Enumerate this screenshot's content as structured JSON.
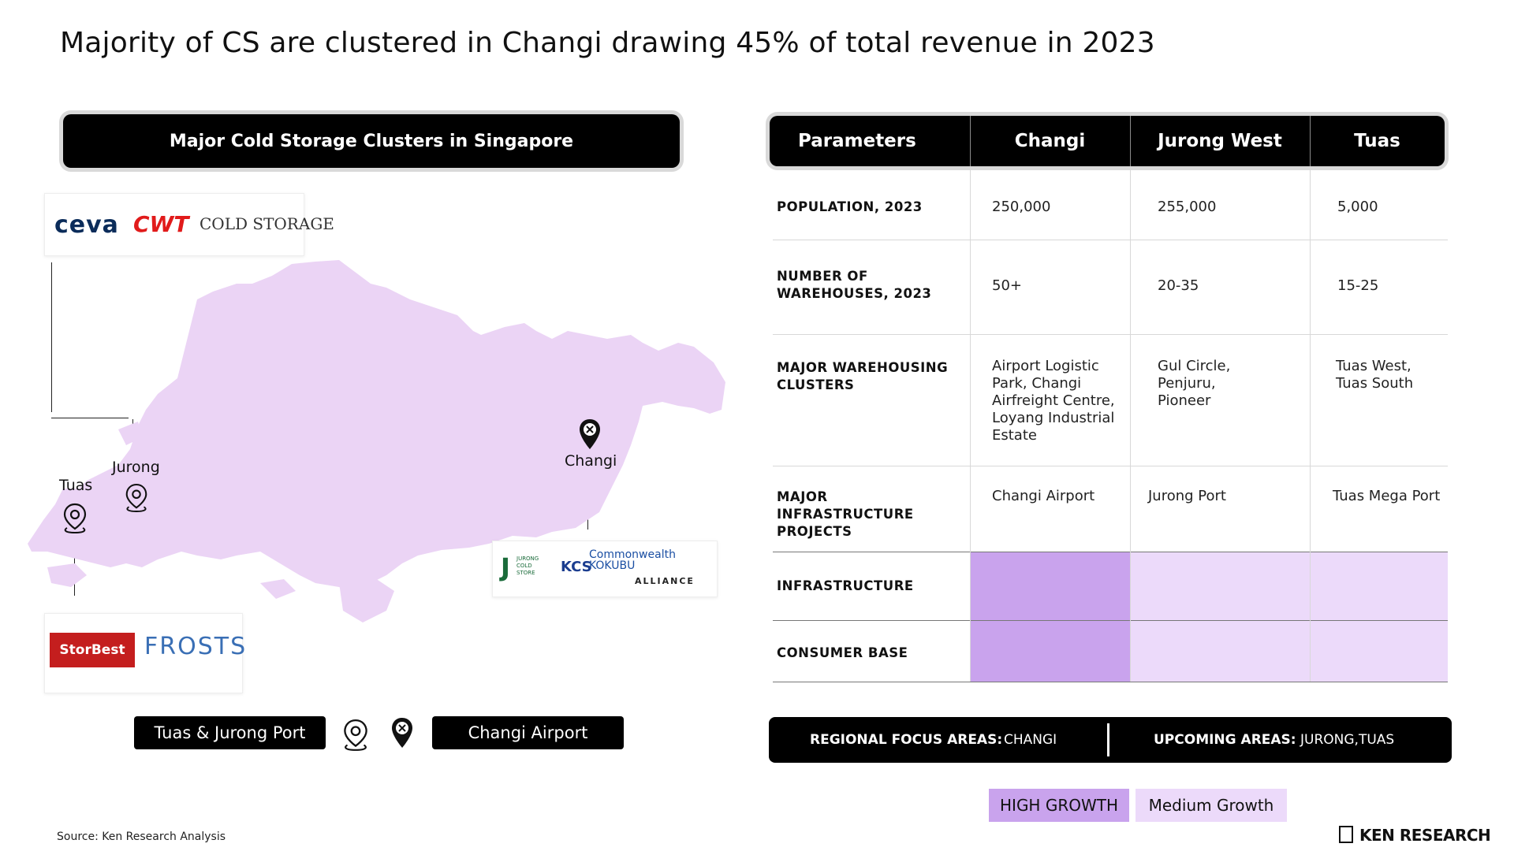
{
  "title": "Majority of CS are clustered in Changi drawing 45% of total revenue in 2023",
  "map_panel": {
    "header": "Major Cold Storage Clusters in Singapore",
    "places": {
      "tuas": "Tuas",
      "jurong": "Jurong",
      "changi": "Changi"
    },
    "logos_top_left": [
      "ceva",
      "CWT",
      "COLD STORAGE"
    ],
    "logos_bottom_left": [
      "StorBest",
      "FROSTS"
    ],
    "logos_right": [
      "JURONG COLD STORE",
      "KCS",
      "Commonwealth KOKUBU",
      "ALLIANCE"
    ],
    "legend": {
      "left_label": "Tuas & Jurong Port",
      "right_label": "Changi Airport",
      "left_icon": "location-outline-pin-icon",
      "right_icon": "location-filled-pin-icon"
    }
  },
  "table": {
    "headers": [
      "Parameters",
      "Changi",
      "Jurong West",
      "Tuas"
    ],
    "rows": [
      {
        "param": "POPULATION, 2023",
        "changi": "250,000",
        "jurong": "255,000",
        "tuas": "5,000"
      },
      {
        "param": "NUMBER OF WAREHOUSES, 2023",
        "changi": "50+",
        "jurong": "20-35",
        "tuas": "15-25"
      },
      {
        "param": "MAJOR WAREHOUSING CLUSTERS",
        "changi": "Airport Logistic Park, Changi Airfreight Centre, Loyang Industrial Estate",
        "jurong": "Gul Circle, Penjuru, Pioneer",
        "tuas": "Tuas West, Tuas South"
      },
      {
        "param": "MAJOR INFRASTRUCTURE PROJECTS",
        "changi": "Changi Airport",
        "jurong": "Jurong Port",
        "tuas": "Tuas Mega Port"
      },
      {
        "param": "INFRASTRUCTURE",
        "changi_level": "HIGH GROWTH",
        "jurong_level": "Medium Growth",
        "tuas_level": "Medium Growth"
      },
      {
        "param": "CONSUMER BASE",
        "changi_level": "HIGH GROWTH",
        "jurong_level": "Medium Growth",
        "tuas_level": "Medium Growth"
      }
    ]
  },
  "focus": {
    "regional_label": "REGIONAL FOCUS AREAS:",
    "regional_value": "CHANGI",
    "upcoming_label": "UPCOMING AREAS:",
    "upcoming_value": "JURONG,TUAS"
  },
  "key": {
    "high": "HIGH GROWTH",
    "medium": "Medium Growth"
  },
  "colors": {
    "high_growth": "#c9a3ed",
    "medium_growth": "#ecdafa",
    "map_fill": "#ebd4f5",
    "header_bg": "#000000"
  },
  "source": "Source: Ken Research Analysis",
  "brand": "KEN RESEARCH"
}
